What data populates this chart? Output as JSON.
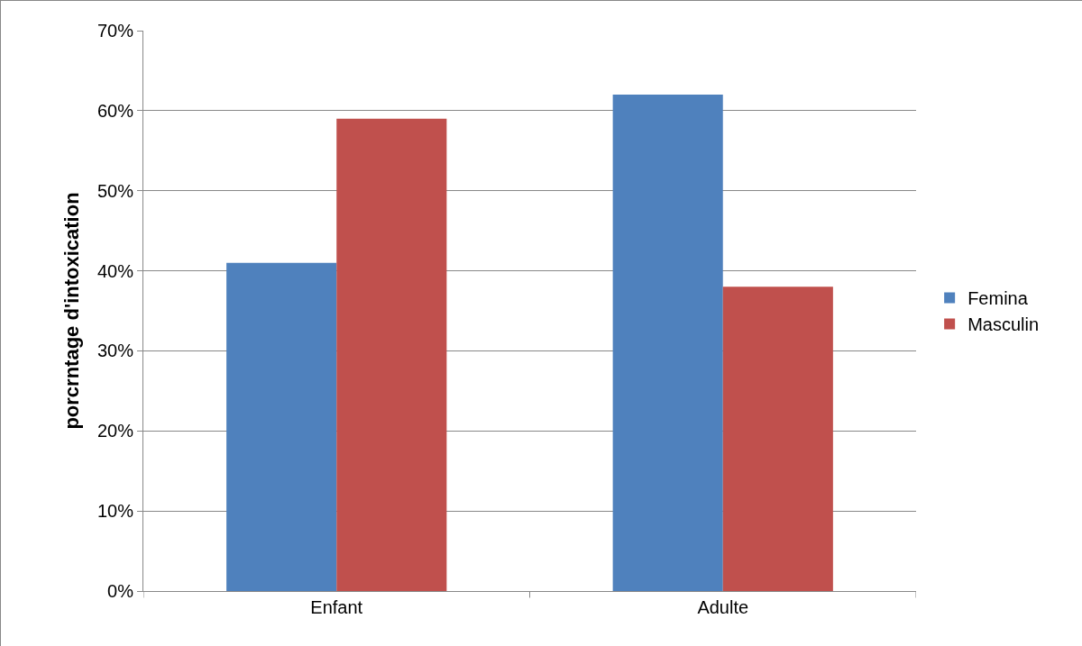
{
  "chart_data": {
    "type": "bar",
    "ylabel": "porcrntage d'intoxication",
    "categories": [
      "Enfant",
      "Adulte"
    ],
    "series": [
      {
        "name": "Femina",
        "color": "#4f81bd",
        "values": [
          41,
          62
        ]
      },
      {
        "name": "Masculin",
        "color": "#c0504d",
        "values": [
          59,
          38
        ]
      }
    ],
    "ylim": [
      0,
      70
    ],
    "yticks": [
      {
        "value": 0,
        "label": "0%"
      },
      {
        "value": 10,
        "label": "10%"
      },
      {
        "value": 20,
        "label": "20%"
      },
      {
        "value": 30,
        "label": "30%"
      },
      {
        "value": 40,
        "label": "40%"
      },
      {
        "value": 50,
        "label": "50%"
      },
      {
        "value": 60,
        "label": "60%"
      },
      {
        "value": 70,
        "label": "70%"
      }
    ],
    "grid": "y",
    "legend": "right"
  }
}
